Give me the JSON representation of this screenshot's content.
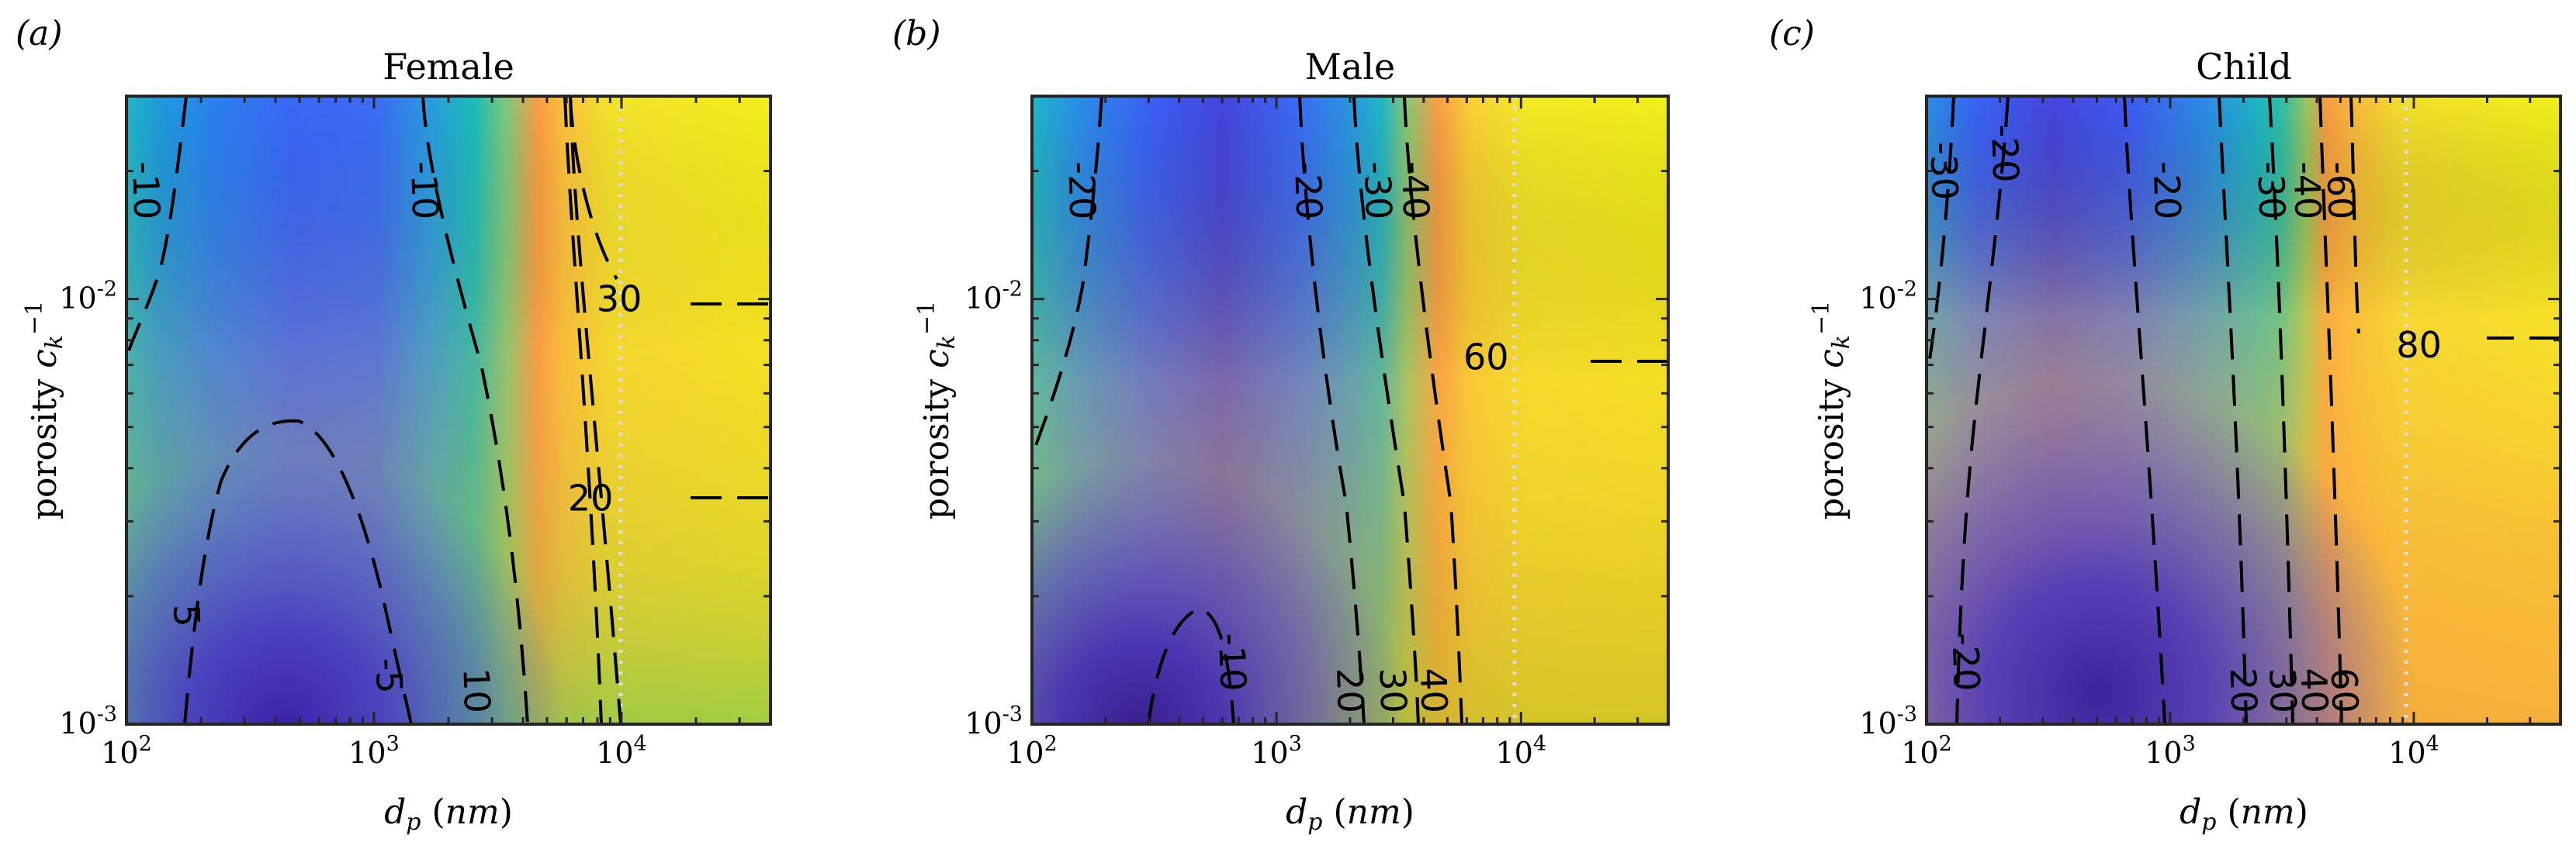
{
  "chart_data": [
    {
      "type": "heatmap",
      "panel_label": "(a)",
      "title": "Female",
      "xlabel": "d_p (nm)",
      "ylabel": "porosity c_k^-1",
      "x_scale": "log",
      "y_scale": "log",
      "xlim": [
        100,
        40000
      ],
      "ylim": [
        0.001,
        0.03
      ],
      "x_ticks": [
        {
          "value": 100,
          "base": "10",
          "exp": "2"
        },
        {
          "value": 1000,
          "base": "10",
          "exp": "3"
        },
        {
          "value": 10000,
          "base": "10",
          "exp": "4"
        }
      ],
      "y_ticks": [
        {
          "value": 0.001,
          "base": "10",
          "exp": "-3"
        },
        {
          "value": 0.01,
          "base": "10",
          "exp": "-2"
        }
      ],
      "reference_line_x": 10000,
      "colormap": "parula",
      "contour_labels": [
        {
          "text": "-10",
          "x": 120,
          "y": 0.018
        },
        {
          "text": "-10",
          "x": 1600,
          "y": 0.018
        },
        {
          "text": "5",
          "x": 175,
          "y": 0.0018
        },
        {
          "text": "-5",
          "x": 1150,
          "y": 0.0013
        },
        {
          "text": "10",
          "x": 2600,
          "y": 0.0012
        },
        {
          "text": "30",
          "x": 9800,
          "y": 0.01
        },
        {
          "text": "20",
          "x": 7500,
          "y": 0.0034
        }
      ]
    },
    {
      "type": "heatmap",
      "panel_label": "(b)",
      "title": "Male",
      "xlabel": "d_p (nm)",
      "ylabel": "porosity c_k^-1",
      "x_scale": "log",
      "y_scale": "log",
      "xlim": [
        100,
        40000
      ],
      "ylim": [
        0.001,
        0.03
      ],
      "x_ticks": [
        {
          "value": 100,
          "base": "10",
          "exp": "2"
        },
        {
          "value": 1000,
          "base": "10",
          "exp": "3"
        },
        {
          "value": 10000,
          "base": "10",
          "exp": "4"
        }
      ],
      "y_ticks": [
        {
          "value": 0.001,
          "base": "10",
          "exp": "-3"
        },
        {
          "value": 0.01,
          "base": "10",
          "exp": "-2"
        }
      ],
      "reference_line_x": 10000,
      "colormap": "parula",
      "contour_labels": [
        {
          "text": "-20",
          "x": 160,
          "y": 0.018
        },
        {
          "text": "-20",
          "x": 1350,
          "y": 0.018
        },
        {
          "text": "-30",
          "x": 2600,
          "y": 0.018
        },
        {
          "text": "-40",
          "x": 3700,
          "y": 0.018
        },
        {
          "text": "60",
          "x": 7200,
          "y": 0.0073
        },
        {
          "text": "-10",
          "x": 660,
          "y": 0.0014
        },
        {
          "text": "20",
          "x": 2000,
          "y": 0.0012
        },
        {
          "text": "30",
          "x": 3000,
          "y": 0.0012
        },
        {
          "text": "40",
          "x": 4400,
          "y": 0.0012
        }
      ]
    },
    {
      "type": "heatmap",
      "panel_label": "(c)",
      "title": "Child",
      "xlabel": "d_p (nm)",
      "ylabel": "porosity c_k^-1",
      "x_scale": "log",
      "y_scale": "log",
      "xlim": [
        100,
        40000
      ],
      "ylim": [
        0.001,
        0.03
      ],
      "x_ticks": [
        {
          "value": 100,
          "base": "10",
          "exp": "2"
        },
        {
          "value": 1000,
          "base": "10",
          "exp": "3"
        },
        {
          "value": 10000,
          "base": "10",
          "exp": "4"
        }
      ],
      "y_ticks": [
        {
          "value": 0.001,
          "base": "10",
          "exp": "-3"
        },
        {
          "value": 0.01,
          "base": "10",
          "exp": "-2"
        }
      ],
      "reference_line_x": 10000,
      "colormap": "parula",
      "contour_labels": [
        {
          "text": "-30",
          "x": 118,
          "y": 0.02
        },
        {
          "text": "-20",
          "x": 210,
          "y": 0.022
        },
        {
          "text": "-20",
          "x": 970,
          "y": 0.018
        },
        {
          "text": "-30",
          "x": 2600,
          "y": 0.018
        },
        {
          "text": "-40",
          "x": 3650,
          "y": 0.018
        },
        {
          "text": "-60",
          "x": 5000,
          "y": 0.018
        },
        {
          "text": "80",
          "x": 10500,
          "y": 0.0078
        },
        {
          "text": "-20",
          "x": 145,
          "y": 0.0014
        },
        {
          "text": "20",
          "x": 2000,
          "y": 0.0012
        },
        {
          "text": "30",
          "x": 2900,
          "y": 0.0012
        },
        {
          "text": "40",
          "x": 3900,
          "y": 0.0012
        },
        {
          "text": "60",
          "x": 5200,
          "y": 0.0012
        }
      ]
    }
  ]
}
